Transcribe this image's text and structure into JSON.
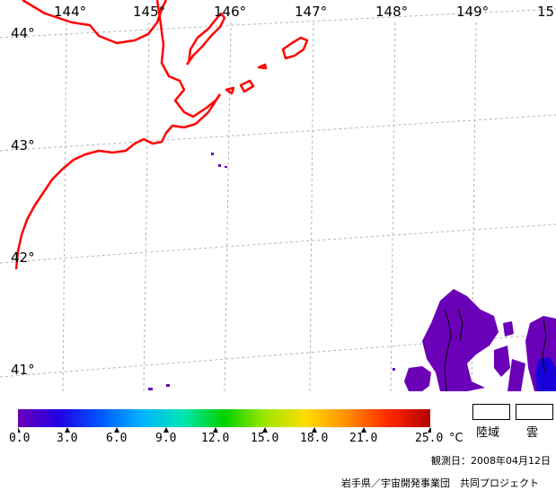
{
  "map": {
    "lon_labels": [
      "144°",
      "145°",
      "146°",
      "147°",
      "148°",
      "149°",
      "15"
    ],
    "lat_labels": [
      "44°",
      "43°",
      "42°",
      "41°"
    ],
    "coast_color": "#ff0000",
    "grid_color": "#b4b4b4",
    "sst_color": "#6a00b8"
  },
  "colorbar": {
    "ticks": [
      "0.0",
      "3.0",
      "6.0",
      "9.0",
      "12.0",
      "15.0",
      "18.0",
      "21.0",
      "25.0"
    ],
    "unit": "°C",
    "colors": [
      "#6a00b8",
      "#2200e6",
      "#0057ff",
      "#00b4ff",
      "#00e6b4",
      "#00d200",
      "#a0e600",
      "#ffdc00",
      "#ff8c00",
      "#ff2800",
      "#b40000"
    ]
  },
  "legend": {
    "land_label": "陸域",
    "cloud_label": "雲"
  },
  "footer": {
    "observation_date": "観測日：2008年04月12日",
    "credit": "岩手県／宇宙開発事業団　共同プロジェクト"
  }
}
